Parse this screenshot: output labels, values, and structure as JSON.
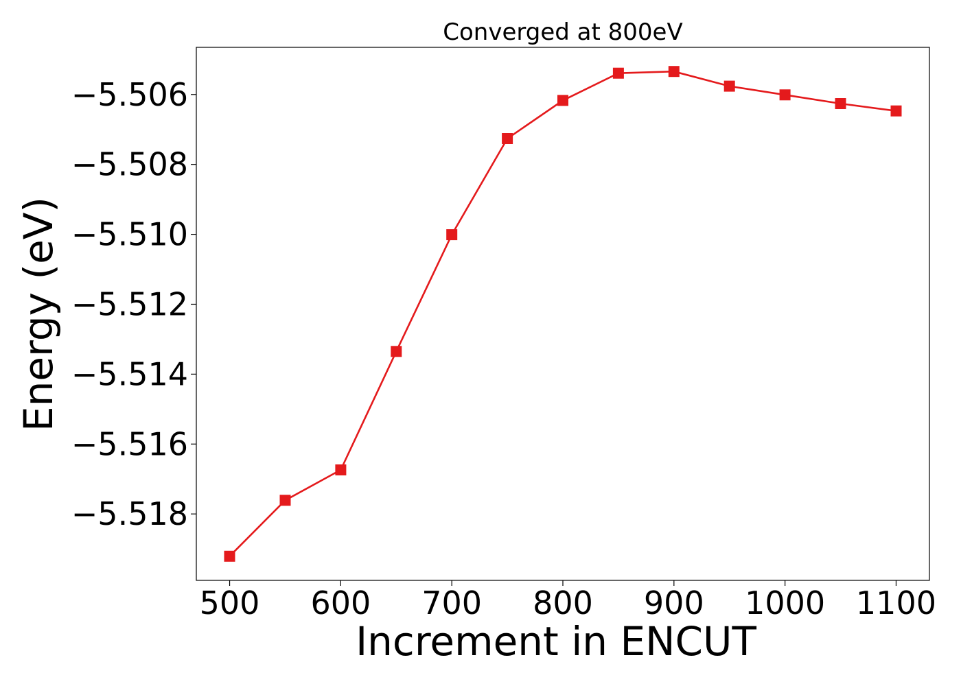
{
  "chart_data": {
    "type": "line",
    "title": "Converged at 800eV",
    "xlabel": "Increment in ENCUT",
    "ylabel": "Energy (eV)",
    "x": [
      500,
      550,
      600,
      650,
      700,
      750,
      800,
      850,
      900,
      950,
      1000,
      1050,
      1100
    ],
    "series": [
      {
        "values": [
          -5.51921,
          -5.51761,
          -5.51674,
          -5.51335,
          -5.51001,
          -5.50726,
          -5.50617,
          -5.50539,
          -5.50534,
          -5.50576,
          -5.50601,
          -5.50626,
          -5.50647
        ],
        "color": "#e41a1c",
        "marker": "square"
      }
    ],
    "xlim": [
      470,
      1130
    ],
    "ylim": [
      -5.5199,
      -5.50465
    ],
    "xticks": [
      500,
      600,
      700,
      800,
      900,
      1000,
      1100
    ],
    "xtick_labels": [
      "500",
      "600",
      "700",
      "800",
      "900",
      "1000",
      "1100"
    ],
    "yticks": [
      -5.518,
      -5.516,
      -5.514,
      -5.512,
      -5.51,
      -5.508,
      -5.506
    ],
    "ytick_labels": [
      "−5.518",
      "−5.516",
      "−5.514",
      "−5.512",
      "−5.510",
      "−5.508",
      "−5.506"
    ],
    "grid": false,
    "legend": "none"
  }
}
